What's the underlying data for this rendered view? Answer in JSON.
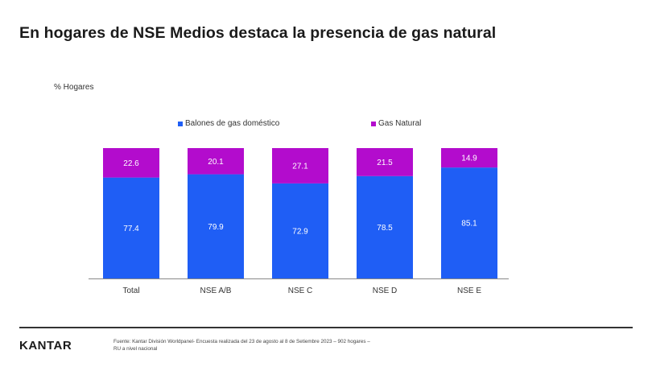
{
  "title": "En hogares de NSE Medios destaca la presencia de gas natural",
  "unit_label": "% Hogares",
  "footer": {
    "logo": "KANTAR",
    "source_line1": "Fuente: Kantar División Worldpanel- Encuesta realizada del 23  de agosto al 8 de Setiembre 2023  – 902  hogares –",
    "source_line2": "RU  a nivel nacional"
  },
  "colors": {
    "balones": "#1f5ef5",
    "gas_natural": "#b30ccd",
    "axis": "#888888"
  },
  "chart_data": {
    "type": "bar",
    "stacked": true,
    "categories": [
      "Total",
      "NSE A/B",
      "NSE C",
      "NSE D",
      "NSE E"
    ],
    "series": [
      {
        "name": "Balones de gas doméstico",
        "values": [
          "77.4",
          "79.9",
          "72.9",
          "78.5",
          "85.1"
        ]
      },
      {
        "name": "Gas Natural",
        "values": [
          "22.6",
          "20.1",
          "27.1",
          "21.5",
          "14.9"
        ]
      }
    ],
    "ylim": [
      0,
      100
    ],
    "legend": "top",
    "grid": false
  }
}
